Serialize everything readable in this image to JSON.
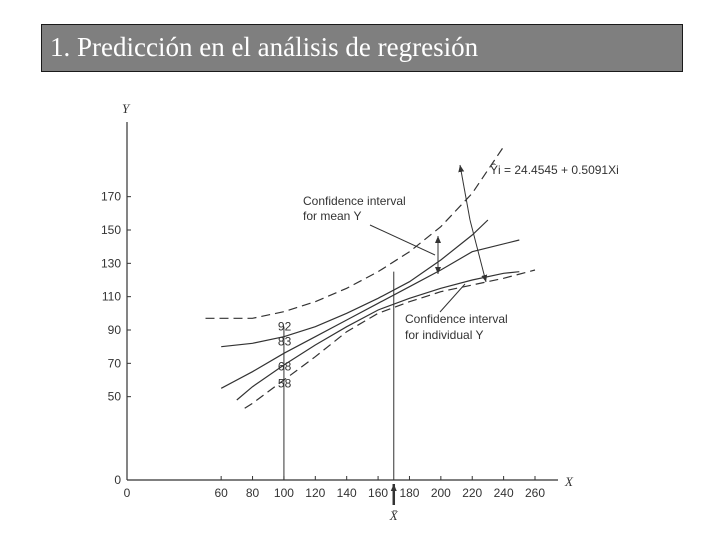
{
  "slide": {
    "title": "1. Predicción en el análisis de regresión"
  },
  "chart_data": {
    "type": "line",
    "xlabel": "X",
    "ylabel": "Y",
    "xlim": [
      0,
      260
    ],
    "ylim": [
      0,
      180
    ],
    "x_ticks": [
      0,
      60,
      80,
      100,
      120,
      140,
      160,
      180,
      200,
      220,
      240,
      260
    ],
    "y_ticks": [
      0,
      50,
      70,
      90,
      110,
      130,
      150,
      170
    ],
    "xbar_label": "X̄",
    "xbar_value": 170,
    "regression_label": "Ŷi = 24.4545 + 0.5091Xi",
    "regression": {
      "intercept": 24.4545,
      "slope": 0.5091,
      "x_range": [
        60,
        250
      ]
    },
    "annotations": {
      "mean_ci": [
        "Confidence interval",
        "for mean Y"
      ],
      "individual_ci": [
        "Confidence interval",
        "for individual Y"
      ]
    },
    "point_labels": [
      {
        "text": "92",
        "x": 100,
        "y": 92
      },
      {
        "text": "83",
        "x": 100,
        "y": 83
      },
      {
        "text": "68",
        "x": 100,
        "y": 68
      },
      {
        "text": "58",
        "x": 100,
        "y": 58
      }
    ],
    "series": [
      {
        "style": "dashed",
        "x": [
          50,
          80,
          100,
          120,
          140,
          160,
          180,
          200,
          220,
          240
        ],
        "y": [
          97,
          97,
          101,
          107,
          115,
          125,
          137,
          152,
          172,
          200
        ]
      },
      {
        "style": "solid",
        "x": [
          60,
          80,
          100,
          120,
          140,
          160,
          180,
          200,
          220,
          230
        ],
        "y": [
          80,
          82,
          86,
          92,
          100,
          109,
          119,
          132,
          147,
          156
        ]
      },
      {
        "style": "solid",
        "x": [
          60,
          80,
          100,
          120,
          140,
          160,
          180,
          200,
          220,
          250
        ],
        "y": [
          55,
          65,
          76,
          86,
          96,
          106,
          116,
          126,
          137,
          144
        ]
      },
      {
        "style": "solid",
        "x": [
          70,
          80,
          100,
          120,
          140,
          160,
          180,
          200,
          220,
          240,
          250
        ],
        "y": [
          48,
          56,
          69,
          81,
          92,
          102,
          109,
          115,
          120,
          124,
          125
        ]
      },
      {
        "style": "dashed",
        "x": [
          75,
          80,
          100,
          120,
          140,
          160,
          180,
          200,
          220,
          240,
          260
        ],
        "y": [
          43,
          46,
          60,
          74,
          89,
          100,
          107,
          113,
          117,
          121,
          126
        ]
      }
    ]
  }
}
